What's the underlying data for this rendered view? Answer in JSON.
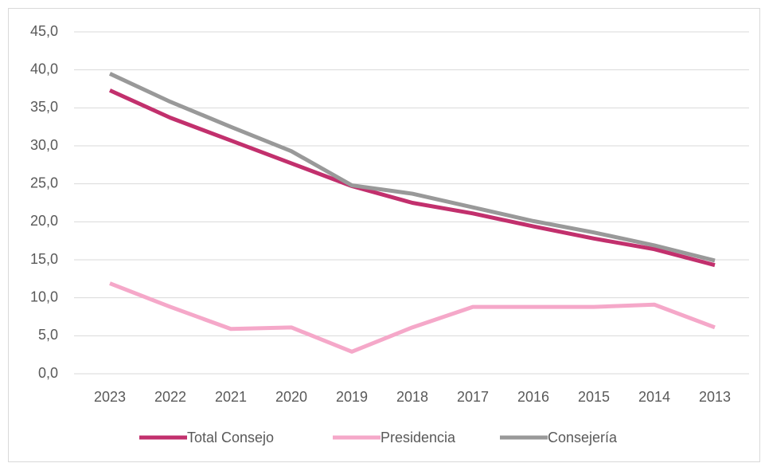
{
  "chart_data": {
    "type": "line",
    "categories": [
      "2023",
      "2022",
      "2021",
      "2020",
      "2019",
      "2018",
      "2017",
      "2016",
      "2015",
      "2014",
      "2013"
    ],
    "series": [
      {
        "name": "Total Consejo",
        "color": "#c2306d",
        "values": [
          37.3,
          33.7,
          30.7,
          27.7,
          24.7,
          22.5,
          21.1,
          19.4,
          17.8,
          16.4,
          14.3
        ]
      },
      {
        "name": "Presidencia",
        "color": "#f5a8c9",
        "values": [
          11.9,
          8.8,
          5.9,
          6.1,
          2.9,
          6.1,
          8.8,
          8.8,
          8.8,
          9.1,
          6.1
        ]
      },
      {
        "name": "Consejería",
        "color": "#999999",
        "values": [
          39.5,
          35.8,
          32.5,
          29.3,
          24.8,
          23.7,
          21.9,
          20.1,
          18.6,
          16.9,
          14.9
        ]
      }
    ],
    "ylim": [
      0,
      45
    ],
    "yticks": [
      {
        "value": 0,
        "label": "0,0"
      },
      {
        "value": 5,
        "label": "5,0"
      },
      {
        "value": 10,
        "label": "10,0"
      },
      {
        "value": 15,
        "label": "15,0"
      },
      {
        "value": 20,
        "label": "20,0"
      },
      {
        "value": 25,
        "label": "25,0"
      },
      {
        "value": 30,
        "label": "30,0"
      },
      {
        "value": 35,
        "label": "35,0"
      },
      {
        "value": 40,
        "label": "40,0"
      },
      {
        "value": 45,
        "label": "45,0"
      }
    ],
    "grid": true,
    "legend": "bottom"
  }
}
